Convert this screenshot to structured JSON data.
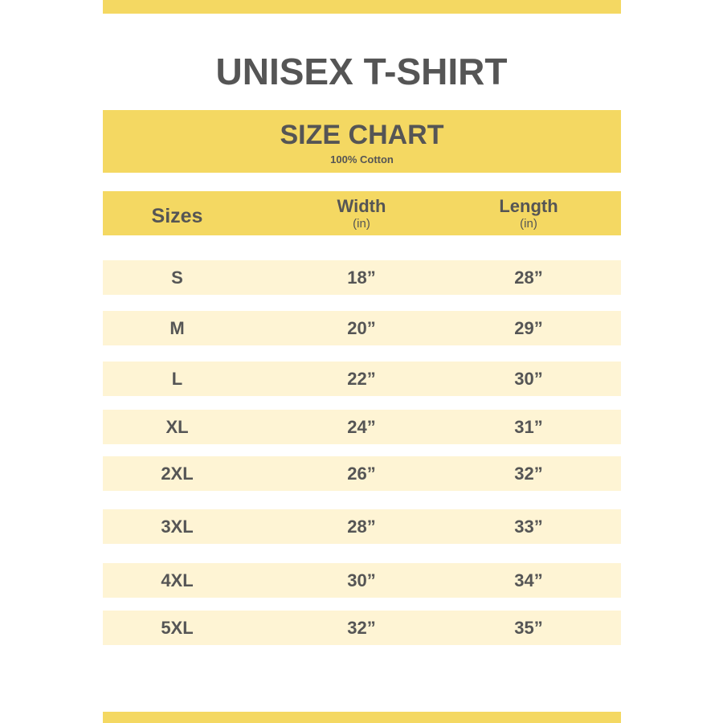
{
  "title": "UNISEX T-SHIRT",
  "band": {
    "heading": "SIZE CHART",
    "subheading": "100% Cotton"
  },
  "header": {
    "sizes": "Sizes",
    "width": "Width",
    "width_unit": "(in)",
    "length": "Length",
    "length_unit": "(in)"
  },
  "rows": [
    {
      "size": "S",
      "width": "18”",
      "length": "28”"
    },
    {
      "size": "M",
      "width": "20”",
      "length": "29”"
    },
    {
      "size": "L",
      "width": "22”",
      "length": "30”"
    },
    {
      "size": "XL",
      "width": "24”",
      "length": "31”"
    },
    {
      "size": "2XL",
      "width": "26”",
      "length": "32”"
    },
    {
      "size": "3XL",
      "width": "28”",
      "length": "33”"
    },
    {
      "size": "4XL",
      "width": "30”",
      "length": "34”"
    },
    {
      "size": "5XL",
      "width": "32”",
      "length": "35”"
    }
  ],
  "colors": {
    "accent": "#F4D862",
    "row": "#FEF4D4",
    "text": "#555555"
  }
}
